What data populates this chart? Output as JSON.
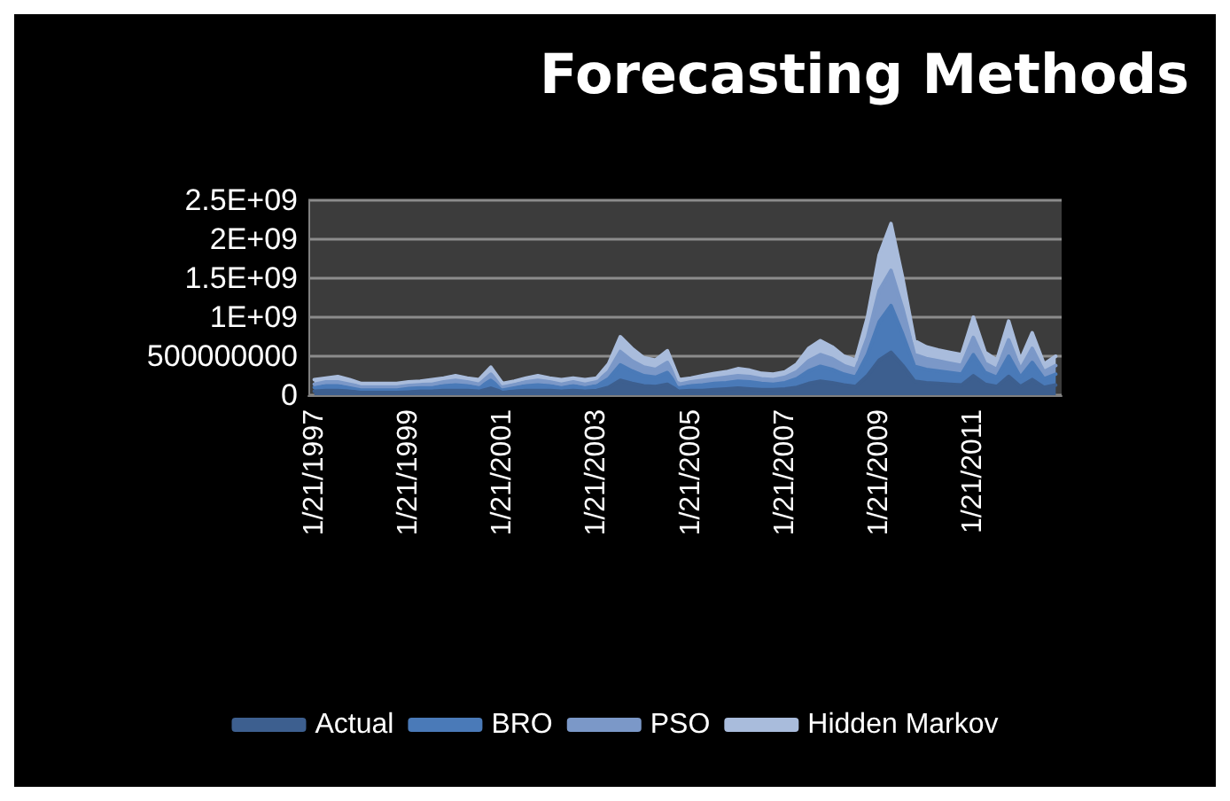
{
  "chart_data": {
    "type": "area",
    "title": "Forecasting Methods",
    "stacked": true,
    "marker": "none",
    "grid": "y",
    "legend": "bottom",
    "categories": [
      "1/21/1997",
      null,
      null,
      null,
      null,
      null,
      null,
      null,
      "1/21/1999",
      null,
      null,
      null,
      null,
      null,
      null,
      null,
      "1/21/2001",
      null,
      null,
      null,
      null,
      null,
      null,
      null,
      "1/21/2003",
      null,
      null,
      null,
      null,
      null,
      null,
      null,
      "1/21/2005",
      null,
      null,
      null,
      null,
      null,
      null,
      null,
      "1/21/2007",
      null,
      null,
      null,
      null,
      null,
      null,
      null,
      "1/21/2009",
      null,
      null,
      null,
      null,
      null,
      null,
      null,
      "1/21/2011",
      null,
      null,
      null,
      null,
      null,
      null,
      null
    ],
    "ylim": [
      0,
      2500000000
    ],
    "yticks": [
      0,
      500000000,
      {
        "value": 1000000000,
        "label": "1E+09"
      },
      {
        "value": 1500000000,
        "label": "1.5E+09"
      },
      {
        "value": 2000000000,
        "label": "2E+09"
      },
      {
        "value": 2500000000,
        "label": "2.5E+09"
      }
    ],
    "series": [
      {
        "name": "Actual",
        "color": "#3d5f8f",
        "values": [
          50000000,
          60000000,
          60000000,
          50000000,
          40000000,
          40000000,
          40000000,
          40000000,
          40000000,
          50000000,
          50000000,
          60000000,
          60000000,
          60000000,
          50000000,
          90000000,
          40000000,
          50000000,
          60000000,
          60000000,
          60000000,
          50000000,
          60000000,
          50000000,
          60000000,
          100000000,
          190000000,
          150000000,
          120000000,
          110000000,
          140000000,
          50000000,
          60000000,
          60000000,
          70000000,
          80000000,
          90000000,
          80000000,
          70000000,
          70000000,
          80000000,
          100000000,
          150000000,
          180000000,
          160000000,
          130000000,
          110000000,
          250000000,
          450000000,
          550000000,
          380000000,
          180000000,
          160000000,
          150000000,
          140000000,
          130000000,
          250000000,
          140000000,
          110000000,
          240000000,
          110000000,
          200000000,
          100000000,
          130000000
        ]
      },
      {
        "name": "BRO",
        "color": "#4a7ab8",
        "values": [
          50000000,
          60000000,
          60000000,
          50000000,
          40000000,
          40000000,
          40000000,
          40000000,
          50000000,
          50000000,
          50000000,
          60000000,
          70000000,
          60000000,
          50000000,
          100000000,
          40000000,
          50000000,
          60000000,
          70000000,
          60000000,
          50000000,
          60000000,
          50000000,
          60000000,
          110000000,
          200000000,
          160000000,
          130000000,
          120000000,
          150000000,
          50000000,
          60000000,
          70000000,
          80000000,
          80000000,
          90000000,
          90000000,
          80000000,
          70000000,
          80000000,
          110000000,
          160000000,
          190000000,
          170000000,
          140000000,
          120000000,
          270000000,
          490000000,
          600000000,
          400000000,
          190000000,
          170000000,
          160000000,
          150000000,
          140000000,
          270000000,
          150000000,
          120000000,
          260000000,
          120000000,
          220000000,
          110000000,
          140000000
        ]
      },
      {
        "name": "PSO",
        "color": "#7b98c8",
        "values": [
          40000000,
          50000000,
          50000000,
          40000000,
          30000000,
          30000000,
          30000000,
          30000000,
          40000000,
          40000000,
          40000000,
          50000000,
          60000000,
          50000000,
          40000000,
          80000000,
          30000000,
          40000000,
          50000000,
          60000000,
          50000000,
          40000000,
          50000000,
          40000000,
          50000000,
          90000000,
          170000000,
          130000000,
          110000000,
          100000000,
          130000000,
          40000000,
          50000000,
          60000000,
          60000000,
          70000000,
          70000000,
          70000000,
          60000000,
          60000000,
          70000000,
          90000000,
          130000000,
          150000000,
          140000000,
          110000000,
          100000000,
          220000000,
          400000000,
          450000000,
          330000000,
          150000000,
          140000000,
          130000000,
          120000000,
          110000000,
          220000000,
          120000000,
          100000000,
          210000000,
          100000000,
          180000000,
          90000000,
          110000000
        ]
      },
      {
        "name": "Hidden Markov",
        "color": "#a9bcdc",
        "values": [
          60000000,
          50000000,
          70000000,
          60000000,
          40000000,
          40000000,
          40000000,
          40000000,
          40000000,
          40000000,
          60000000,
          50000000,
          60000000,
          50000000,
          60000000,
          90000000,
          40000000,
          40000000,
          50000000,
          60000000,
          50000000,
          60000000,
          50000000,
          60000000,
          50000000,
          100000000,
          190000000,
          160000000,
          120000000,
          120000000,
          150000000,
          60000000,
          50000000,
          60000000,
          70000000,
          70000000,
          90000000,
          80000000,
          70000000,
          70000000,
          70000000,
          100000000,
          160000000,
          180000000,
          150000000,
          120000000,
          120000000,
          260000000,
          460000000,
          600000000,
          390000000,
          180000000,
          150000000,
          140000000,
          140000000,
          140000000,
          260000000,
          140000000,
          120000000,
          240000000,
          120000000,
          200000000,
          100000000,
          120000000
        ]
      }
    ]
  }
}
